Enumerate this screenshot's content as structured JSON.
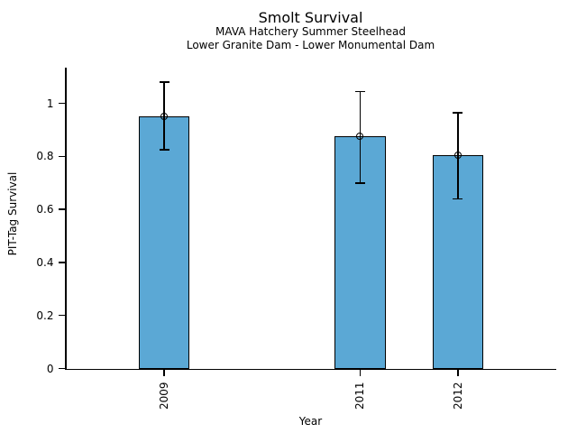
{
  "chart_data": {
    "type": "bar",
    "title": "Smolt Survival",
    "subtitle_line1": "MAVA Hatchery Summer Steelhead",
    "subtitle_line2": "Lower Granite Dam - Lower Monumental Dam",
    "xlabel": "Year",
    "ylabel": "PIT-Tag Survival",
    "categories": [
      "2009",
      "2011",
      "2012"
    ],
    "x": [
      2009,
      2011,
      2012
    ],
    "values": [
      0.95,
      0.875,
      0.805
    ],
    "error_low": [
      0.825,
      0.7,
      0.64
    ],
    "error_high": [
      1.08,
      1.045,
      0.965
    ],
    "marker": "open-circle",
    "bar_width_years": 0.52,
    "xlim": [
      2008,
      2013
    ],
    "ylim": [
      0,
      1.135
    ],
    "yticks": [
      0,
      0.2,
      0.4,
      0.6,
      0.8,
      1
    ],
    "ytick_labels": [
      "0",
      "0.2",
      "0.4",
      "0.6",
      "0.8",
      "1"
    ],
    "grid": false,
    "legend": "none",
    "colors": {
      "bar_fill": "#5BA8D5",
      "bar_edge": "#000000",
      "error_bar": "#000000",
      "axis": "#000000",
      "text": "#000000",
      "background": "#FFFFFF"
    }
  }
}
